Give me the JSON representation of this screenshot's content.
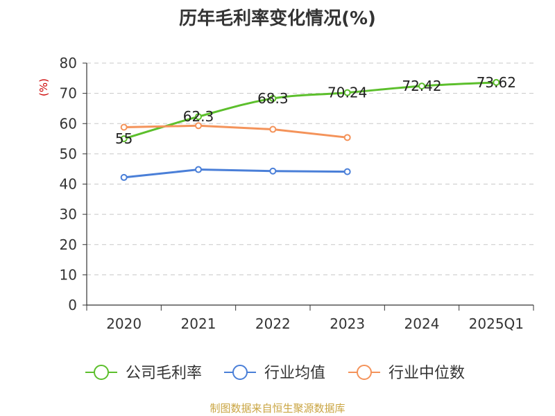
{
  "chart_data": {
    "type": "line",
    "title": "历年毛利率变化情况(%)",
    "ylabel": "(%)",
    "xlabel": "",
    "categories": [
      "2020",
      "2021",
      "2022",
      "2023",
      "2024",
      "2025Q1"
    ],
    "ylim": [
      0,
      80
    ],
    "yticks": [
      0,
      10,
      20,
      30,
      40,
      50,
      60,
      70,
      80
    ],
    "grid": true,
    "legend_position": "bottom",
    "series": [
      {
        "name": "公司毛利率",
        "color": "#5cbf2c",
        "values": [
          55,
          62.3,
          68.3,
          70.24,
          72.42,
          73.62
        ],
        "labels": [
          "55",
          "62.3",
          "68.3",
          "70.24",
          "72.42",
          "73.62"
        ],
        "smooth": true
      },
      {
        "name": "行业均值",
        "color": "#4a7fd8",
        "values": [
          42.2,
          44.8,
          44.3,
          44.1,
          null,
          null
        ]
      },
      {
        "name": "行业中位数",
        "color": "#f4935a",
        "values": [
          58.8,
          59.3,
          58.1,
          55.4,
          null,
          null
        ]
      }
    ]
  },
  "source": "制图数据来自恒生聚源数据库"
}
